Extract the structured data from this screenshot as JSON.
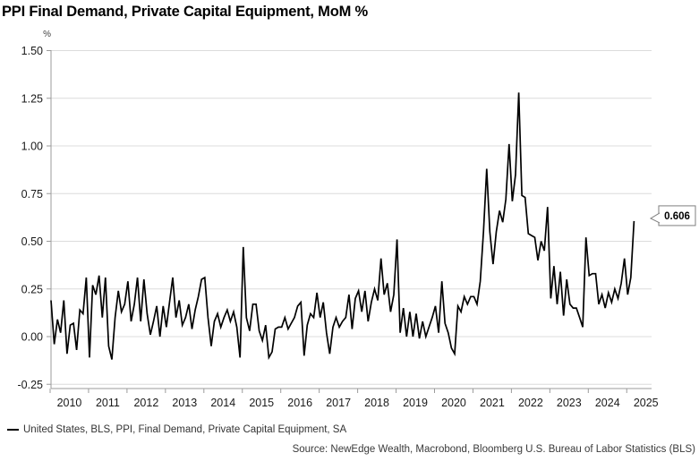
{
  "title": "PPI Final Demand, Private Capital Equipment, MoM %",
  "y_axis": {
    "unit": "%",
    "ticks": [
      {
        "label": "1.50",
        "value": 1.5
      },
      {
        "label": "1.25",
        "value": 1.25
      },
      {
        "label": "1.00",
        "value": 1.0
      },
      {
        "label": "0.75",
        "value": 0.75
      },
      {
        "label": "0.50",
        "value": 0.5
      },
      {
        "label": "0.25",
        "value": 0.25
      },
      {
        "label": "0.00",
        "value": 0.0
      },
      {
        "label": "-0.25",
        "value": -0.25
      }
    ]
  },
  "x_axis": {
    "years": [
      "2010",
      "2011",
      "2012",
      "2013",
      "2014",
      "2015",
      "2016",
      "2017",
      "2018",
      "2019",
      "2020",
      "2021",
      "2022",
      "2023",
      "2024",
      "2025"
    ]
  },
  "chart_data": {
    "type": "line",
    "series": [
      {
        "name": "United States, BLS, PPI, Final Demand, Private Capital Equipment, SA",
        "color": "#000000",
        "frequency": "monthly",
        "start": "2010-01",
        "end": "2025-03",
        "values": [
          0.19,
          -0.04,
          0.09,
          0.02,
          0.19,
          -0.09,
          0.06,
          0.07,
          -0.07,
          0.14,
          0.12,
          0.31,
          -0.11,
          0.27,
          0.22,
          0.32,
          0.1,
          0.31,
          -0.05,
          -0.12,
          0.1,
          0.24,
          0.13,
          0.17,
          0.29,
          0.08,
          0.17,
          0.31,
          0.08,
          0.3,
          0.12,
          0.01,
          0.08,
          0.16,
          0.0,
          0.16,
          0.05,
          0.18,
          0.31,
          0.1,
          0.19,
          0.06,
          0.1,
          0.17,
          0.04,
          0.14,
          0.21,
          0.3,
          0.31,
          0.1,
          -0.05,
          0.08,
          0.12,
          0.05,
          0.1,
          0.14,
          0.08,
          0.13,
          0.05,
          -0.11,
          0.47,
          0.1,
          0.03,
          0.17,
          0.17,
          0.03,
          -0.02,
          0.06,
          -0.11,
          -0.08,
          0.04,
          0.05,
          0.05,
          0.1,
          0.04,
          0.07,
          0.1,
          0.16,
          0.18,
          -0.1,
          0.06,
          0.12,
          0.1,
          0.23,
          0.1,
          0.18,
          0.02,
          -0.09,
          0.05,
          0.1,
          0.05,
          0.08,
          0.1,
          0.22,
          0.04,
          0.2,
          0.24,
          0.13,
          0.24,
          0.08,
          0.18,
          0.25,
          0.19,
          0.41,
          0.22,
          0.28,
          0.13,
          0.22,
          0.51,
          0.02,
          0.15,
          0.0,
          0.13,
          0.0,
          0.12,
          -0.01,
          0.08,
          0.0,
          0.05,
          0.1,
          0.16,
          0.02,
          0.29,
          0.07,
          0.02,
          -0.06,
          -0.09,
          0.16,
          0.13,
          0.21,
          0.17,
          0.21,
          0.21,
          0.17,
          0.29,
          0.55,
          0.88,
          0.55,
          0.38,
          0.55,
          0.66,
          0.6,
          0.72,
          1.01,
          0.71,
          0.85,
          1.28,
          0.74,
          0.73,
          0.54,
          0.53,
          0.52,
          0.4,
          0.5,
          0.45,
          0.68,
          0.2,
          0.37,
          0.17,
          0.34,
          0.11,
          0.3,
          0.17,
          0.15,
          0.15,
          0.1,
          0.05,
          0.52,
          0.32,
          0.33,
          0.33,
          0.17,
          0.22,
          0.15,
          0.23,
          0.18,
          0.25,
          0.2,
          0.28,
          0.41,
          0.22,
          0.31,
          0.606
        ]
      }
    ],
    "title": "PPI Final Demand, Private Capital Equipment, MoM %",
    "xlabel": "",
    "ylabel": "%",
    "ylim": [
      -0.25,
      1.5
    ],
    "grid": "horizontal",
    "legend_position": "bottom-left",
    "last_value": 0.606
  },
  "callout": {
    "label": "0.606"
  },
  "legend": {
    "label": "United States, BLS, PPI, Final Demand, Private Capital Equipment, SA"
  },
  "source": {
    "text": "Source: NewEdge Wealth, Macrobond, Bloomberg U.S. Bureau of Labor Statistics (BLS)"
  },
  "colors": {
    "line": "#000000",
    "grid": "#dcdcdc",
    "axis": "#9b9b9b",
    "text": "#1a1a1a",
    "callout_border": "#7f7f7f",
    "background": "#ffffff"
  }
}
